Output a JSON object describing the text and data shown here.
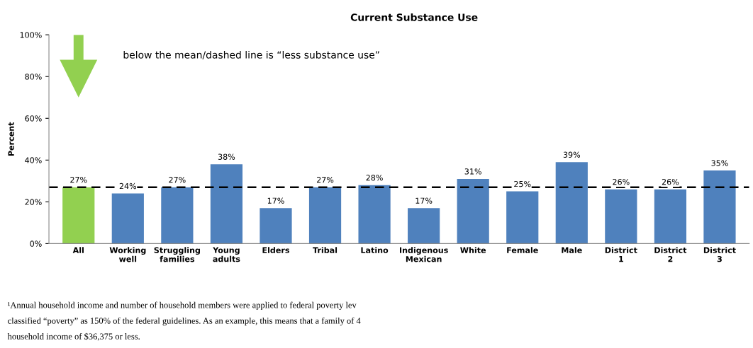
{
  "chart_data": {
    "type": "bar",
    "title": "Current Substance Use",
    "ylabel": "Percent",
    "categories": [
      "All",
      "Working\nwell",
      "Struggling\nfamilies",
      "Young\nadults",
      "Elders",
      "Tribal",
      "Latino",
      "Indigenous\nMexican",
      "White",
      "Female",
      "Male",
      "District\n1",
      "District\n2",
      "District\n3"
    ],
    "values": [
      27,
      24,
      27,
      38,
      17,
      27,
      28,
      17,
      31,
      25,
      39,
      26,
      26,
      35
    ],
    "colors": [
      "#92d050",
      "#4f81bd",
      "#4f81bd",
      "#4f81bd",
      "#4f81bd",
      "#4f81bd",
      "#4f81bd",
      "#4f81bd",
      "#4f81bd",
      "#4f81bd",
      "#4f81bd",
      "#4f81bd",
      "#4f81bd",
      "#4f81bd"
    ],
    "value_labels": [
      "27%",
      "24%",
      "27%",
      "38%",
      "17%",
      "27%",
      "28%",
      "17%",
      "31%",
      "25%",
      "39%",
      "26%",
      "26%",
      "35%"
    ],
    "ylim": [
      0,
      100
    ],
    "yticks": [
      {
        "value": 0,
        "label": "0%"
      },
      {
        "value": 20,
        "label": "20%"
      },
      {
        "value": 40,
        "label": "40%"
      },
      {
        "value": 60,
        "label": "60%"
      },
      {
        "value": 80,
        "label": "80%"
      },
      {
        "value": 100,
        "label": "100%"
      }
    ],
    "ref_lines": [
      {
        "axis": "y",
        "value": 27,
        "color": "#000000",
        "line_style": "dashed"
      }
    ],
    "grid": false,
    "legend": false,
    "annotations": [
      "below the mean/dashed line is “less substance use”",
      "¹Annual household income and number of household members were applied to federal poverty lev",
      "classified “poverty” as 150% of the federal guidelines. As an example, this means that a family of 4",
      "household income of $36,375 or less."
    ]
  }
}
